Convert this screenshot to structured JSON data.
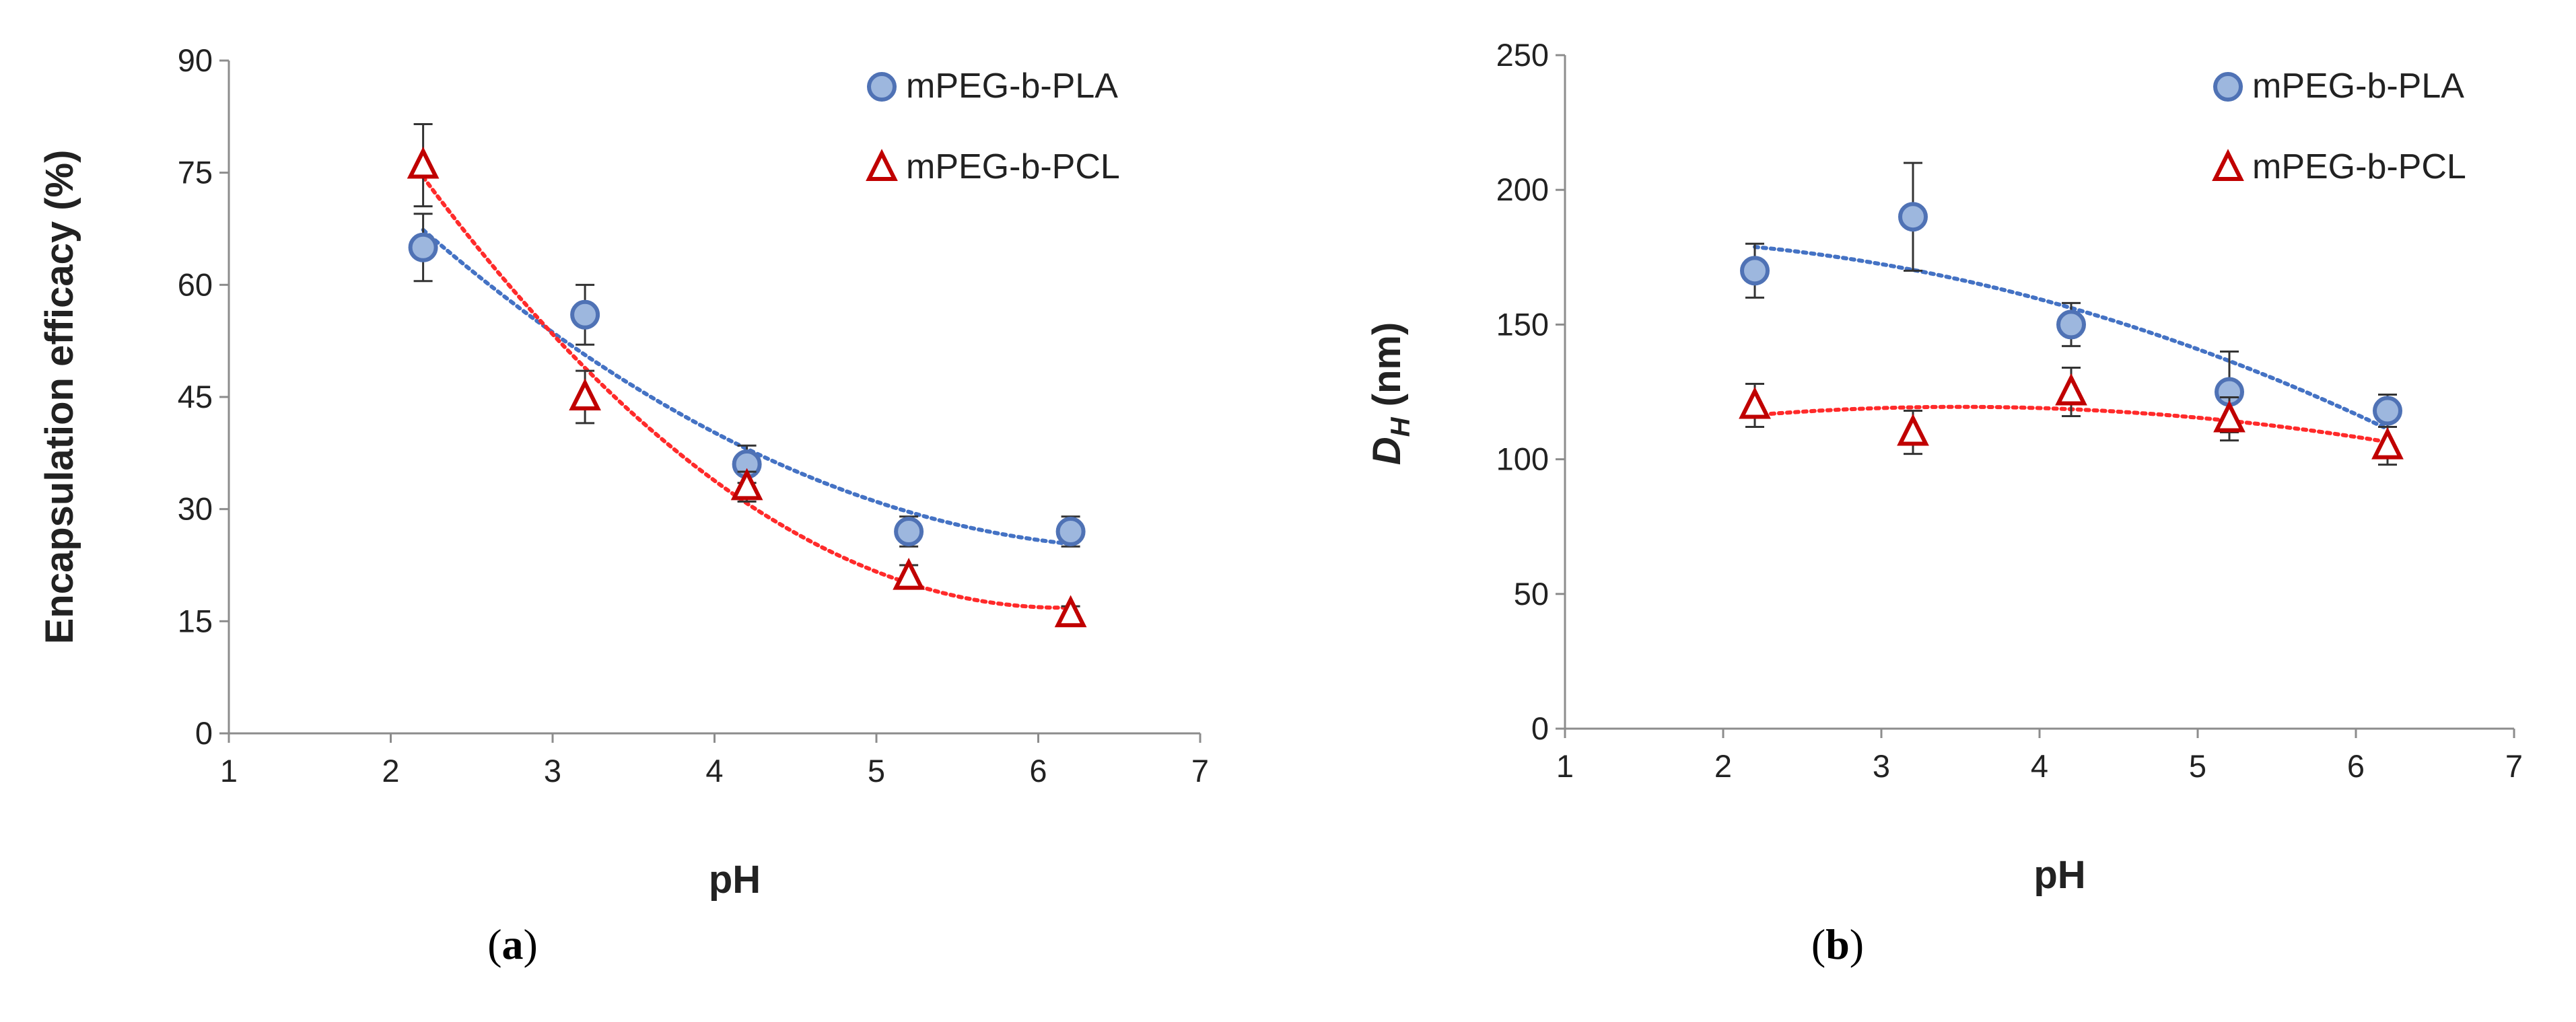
{
  "colors": {
    "axis": "#8c8c8c",
    "series1_marker_fill": "#9db7de",
    "series1_marker_stroke": "#4f72b5",
    "series1_trend": "#4472c4",
    "series2_marker_stroke": "#c00000",
    "series2_trend": "#ff2a2a",
    "error_bar": "#333333"
  },
  "chart_data": [
    {
      "type": "scatter",
      "panel_label": "(a)",
      "panel_letter": "a",
      "xlabel": "pH",
      "ylabel": "Encapsulation efficacy (%)",
      "xlim": [
        1,
        7
      ],
      "ylim": [
        0,
        90
      ],
      "xticks": [
        "1",
        "2",
        "3",
        "4",
        "5",
        "6",
        "7"
      ],
      "yticks": [
        "0",
        "15",
        "30",
        "45",
        "60",
        "75",
        "90"
      ],
      "legend_position": "top-right",
      "series": [
        {
          "name": "mPEG-b-PLA",
          "marker": "circle",
          "x": [
            2.2,
            3.2,
            4.2,
            5.2,
            6.2
          ],
          "y": [
            65,
            56,
            36,
            27,
            27
          ],
          "yerr": [
            4.5,
            4.0,
            2.5,
            2.0,
            2.0
          ],
          "trend": "dotted polynomial"
        },
        {
          "name": "mPEG-b-PCL",
          "marker": "triangle",
          "x": [
            2.2,
            3.2,
            4.2,
            5.2,
            6.2
          ],
          "y": [
            76,
            45,
            33,
            21,
            16
          ],
          "yerr": [
            5.5,
            3.5,
            2.0,
            1.5,
            1.0
          ],
          "trend": "dotted polynomial"
        }
      ]
    },
    {
      "type": "scatter",
      "panel_label": "(b)",
      "panel_letter": "b",
      "xlabel": "pH",
      "ylabel_main": "D",
      "ylabel_sub": "H",
      "ylabel_unit": " (nm)",
      "xlim": [
        1,
        7
      ],
      "ylim": [
        0,
        250
      ],
      "xticks": [
        "1",
        "2",
        "3",
        "4",
        "5",
        "6",
        "7"
      ],
      "yticks": [
        "0",
        "50",
        "100",
        "150",
        "200",
        "250"
      ],
      "legend_position": "top-right",
      "series": [
        {
          "name": "mPEG-b-PLA",
          "marker": "circle",
          "x": [
            2.2,
            3.2,
            4.2,
            5.2,
            6.2
          ],
          "y": [
            170,
            190,
            150,
            125,
            118
          ],
          "yerr": [
            10,
            20,
            8,
            15,
            6
          ],
          "trend": "dotted polynomial"
        },
        {
          "name": "mPEG-b-PCL",
          "marker": "triangle",
          "x": [
            2.2,
            3.2,
            4.2,
            5.2,
            6.2
          ],
          "y": [
            120,
            110,
            125,
            115,
            105
          ],
          "yerr": [
            8,
            8,
            9,
            8,
            7
          ],
          "trend": "dotted polynomial"
        }
      ]
    }
  ]
}
